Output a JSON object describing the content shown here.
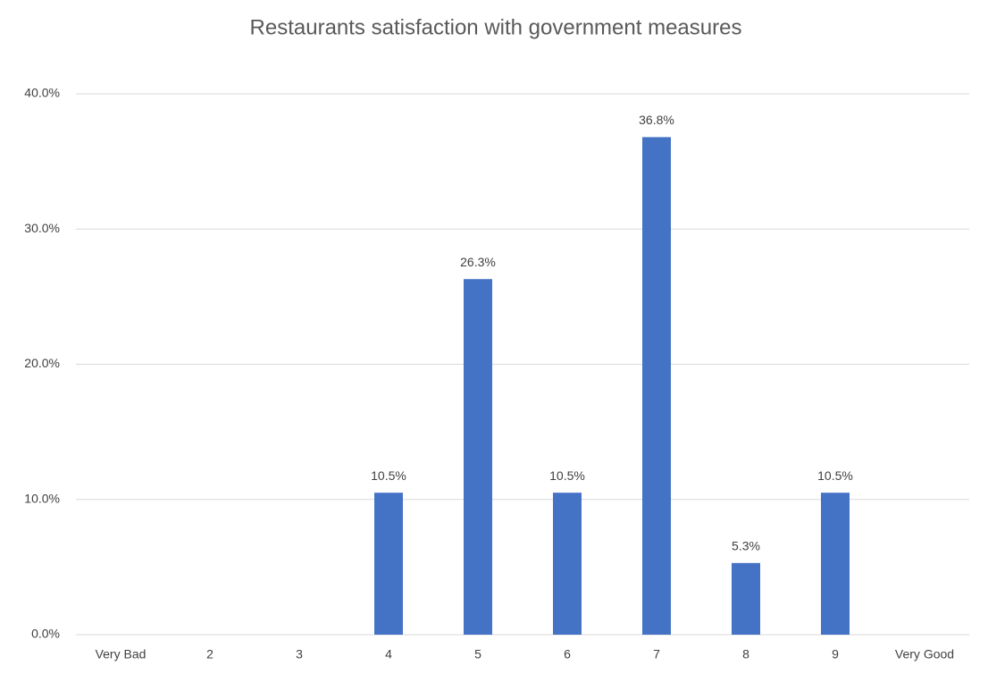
{
  "chart_data": {
    "type": "bar",
    "title": "Restaurants satisfaction with government measures",
    "categories": [
      "Very Bad",
      "2",
      "3",
      "4",
      "5",
      "6",
      "7",
      "8",
      "9",
      "Very Good"
    ],
    "values": [
      0,
      0,
      0,
      10.5,
      26.3,
      10.5,
      36.8,
      5.3,
      10.5,
      0
    ],
    "value_labels": [
      null,
      null,
      null,
      "10.5%",
      "26.3%",
      "10.5%",
      "36.8%",
      "5.3%",
      "10.5%",
      null
    ],
    "color": "#4472c4",
    "ylim": [
      0,
      40
    ],
    "yticks": [
      {
        "value": 0,
        "label": "0.0%"
      },
      {
        "value": 10,
        "label": "10.0%"
      },
      {
        "value": 20,
        "label": "20.0%"
      },
      {
        "value": 30,
        "label": "30.0%"
      },
      {
        "value": 40,
        "label": "40.0%"
      }
    ],
    "grid": true
  }
}
